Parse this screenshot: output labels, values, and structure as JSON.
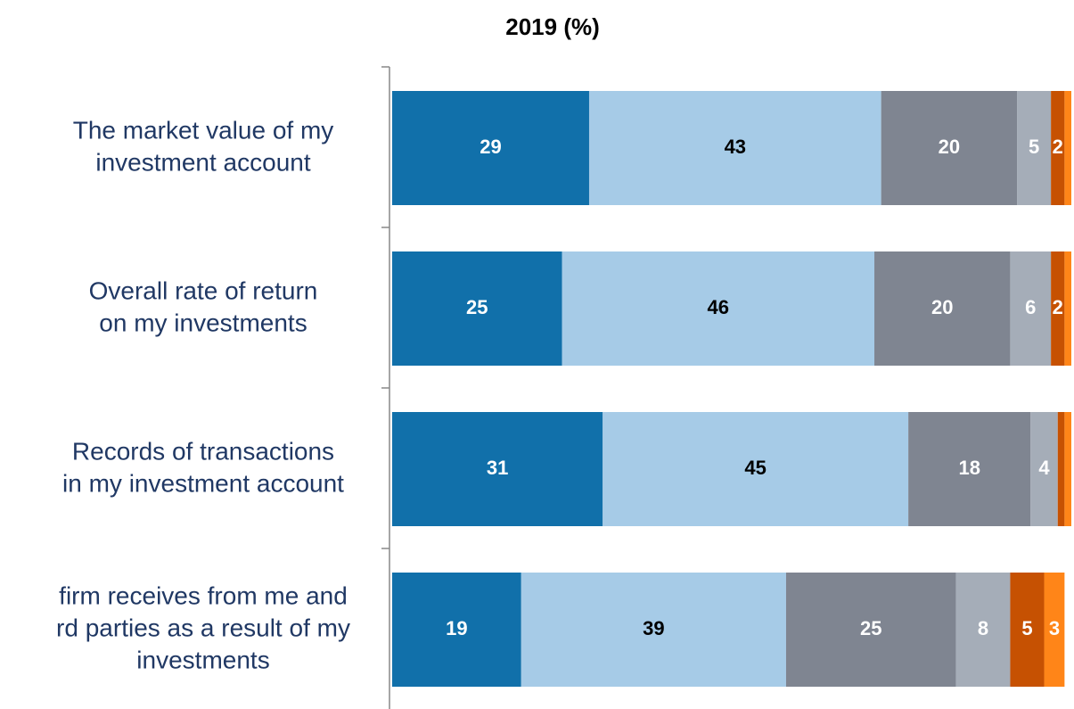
{
  "chart_data": {
    "type": "stacked-bar-horizontal",
    "title": "2019 (%)",
    "categories": [
      [
        "The market value of my",
        "investment account"
      ],
      [
        "Overall rate of return",
        "on my investments"
      ],
      [
        "Records of transactions",
        "in my investment account"
      ],
      [
        "firm receives from me and",
        "rd parties as a result of my",
        "investments"
      ]
    ],
    "xlim": [
      0,
      100
    ],
    "series": [
      {
        "color": "#1170aa",
        "label_color": "#ffffff",
        "values": [
          29,
          25,
          31,
          19
        ]
      },
      {
        "color": "#a6cbe7",
        "label_color": "#000000",
        "values": [
          43,
          46,
          45,
          39
        ]
      },
      {
        "color": "#7f8591",
        "label_color": "#ffffff",
        "values": [
          20,
          20,
          18,
          25
        ]
      },
      {
        "color": "#a5adb8",
        "label_color": "#ffffff",
        "values": [
          5,
          6,
          4,
          8
        ]
      },
      {
        "color": "#c65102",
        "label_color": "#ffffff",
        "values": [
          2,
          2,
          1,
          5
        ],
        "value_labels": [
          "2",
          "2",
          null,
          "5"
        ]
      },
      {
        "color": "#ff8518",
        "label_color": "#ffffff",
        "values": [
          1,
          1,
          1,
          3
        ],
        "value_labels": [
          null,
          null,
          null,
          "3"
        ]
      }
    ]
  }
}
